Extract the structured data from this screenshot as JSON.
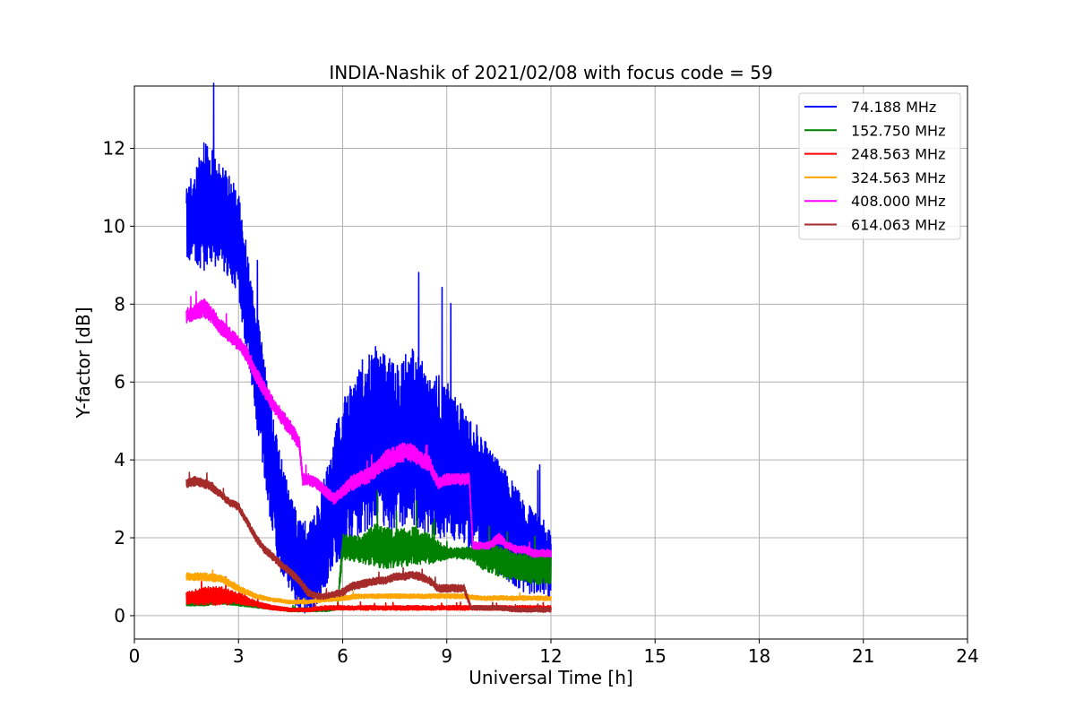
{
  "chart_data": {
    "type": "line",
    "title": "INDIA-Nashik of 2021/02/08 with focus code = 59",
    "xlabel": "Universal Time [h]",
    "ylabel": "Y-factor [dB]",
    "xlim": [
      0,
      24
    ],
    "ylim": [
      -0.6,
      13.6
    ],
    "xticks": [
      0,
      3,
      6,
      9,
      12,
      15,
      18,
      21,
      24
    ],
    "yticks": [
      0,
      2,
      4,
      6,
      8,
      10,
      12
    ],
    "grid": true,
    "legend_position": "top-right",
    "series": [
      {
        "name": " 74.188 MHz",
        "color": "#0000ff",
        "x": [
          1.5,
          1.75,
          2.0,
          2.25,
          2.5,
          2.75,
          3.0,
          3.25,
          3.5,
          3.75,
          4.0,
          4.25,
          4.5,
          4.75,
          5.0,
          5.25,
          5.5,
          5.75,
          6.0,
          6.25,
          6.5,
          6.75,
          7.0,
          7.25,
          7.5,
          7.75,
          8.0,
          8.25,
          8.5,
          8.75,
          9.0,
          9.25,
          9.5,
          9.75,
          10.0,
          10.25,
          10.5,
          10.75,
          11.0,
          11.25,
          11.5,
          11.75,
          12.0
        ],
        "y": [
          10.0,
          10.3,
          10.6,
          10.5,
          10.2,
          10.0,
          9.5,
          8.0,
          6.5,
          5.0,
          3.5,
          2.5,
          1.8,
          1.3,
          1.2,
          1.5,
          2.2,
          3.0,
          3.5,
          4.0,
          4.3,
          4.5,
          4.7,
          4.5,
          4.3,
          4.5,
          4.6,
          4.4,
          4.2,
          4.0,
          4.0,
          3.8,
          3.5,
          3.2,
          3.0,
          2.8,
          2.5,
          2.3,
          2.0,
          1.8,
          1.6,
          1.5,
          1.4
        ],
        "spread": [
          1.0,
          1.2,
          1.8,
          1.5,
          1.4,
          1.3,
          1.4,
          1.4,
          1.5,
          1.6,
          1.6,
          1.5,
          1.3,
          1.2,
          1.2,
          1.3,
          1.5,
          1.8,
          2.0,
          2.1,
          2.2,
          2.3,
          2.4,
          2.3,
          2.2,
          2.2,
          2.3,
          2.2,
          2.1,
          2.0,
          2.0,
          1.9,
          1.8,
          1.7,
          1.6,
          1.6,
          1.5,
          1.4,
          1.3,
          1.2,
          1.1,
          1.0,
          1.0
        ]
      },
      {
        "name": "152.750 MHz",
        "color": "#008000",
        "x": [
          1.5,
          2.0,
          2.5,
          3.0,
          3.5,
          4.0,
          4.5,
          5.0,
          5.5,
          5.85,
          6.0,
          6.5,
          7.0,
          7.5,
          8.0,
          8.5,
          9.0,
          9.5,
          9.65,
          10.0,
          10.5,
          11.0,
          11.5,
          12.0
        ],
        "y": [
          0.3,
          0.3,
          0.35,
          0.3,
          0.25,
          0.2,
          0.15,
          0.15,
          0.15,
          0.2,
          1.8,
          1.7,
          1.8,
          1.7,
          1.8,
          1.7,
          1.6,
          1.6,
          1.6,
          1.5,
          1.4,
          1.3,
          1.2,
          1.2
        ],
        "spread": [
          0.05,
          0.05,
          0.05,
          0.05,
          0.05,
          0.05,
          0.05,
          0.05,
          0.05,
          0.05,
          0.35,
          0.35,
          0.6,
          0.5,
          0.5,
          0.4,
          0.15,
          0.15,
          0.15,
          0.3,
          0.4,
          0.4,
          0.4,
          0.4
        ]
      },
      {
        "name": "248.563 MHz",
        "color": "#ff0000",
        "x": [
          1.5,
          2.0,
          2.5,
          3.0,
          3.5,
          4.0,
          4.5,
          5.0,
          5.5,
          6.0,
          6.5,
          7.0,
          7.5,
          8.0,
          8.5,
          9.0,
          9.5,
          10.0,
          10.5,
          11.0,
          11.5,
          12.0
        ],
        "y": [
          0.45,
          0.5,
          0.5,
          0.45,
          0.3,
          0.2,
          0.15,
          0.15,
          0.2,
          0.2,
          0.2,
          0.2,
          0.2,
          0.2,
          0.2,
          0.2,
          0.2,
          0.2,
          0.2,
          0.2,
          0.2,
          0.2
        ],
        "spread": [
          0.15,
          0.25,
          0.25,
          0.15,
          0.08,
          0.06,
          0.05,
          0.05,
          0.06,
          0.06,
          0.06,
          0.06,
          0.06,
          0.06,
          0.06,
          0.06,
          0.06,
          0.06,
          0.06,
          0.06,
          0.06,
          0.06
        ]
      },
      {
        "name": "324.563 MHz",
        "color": "#ffa500",
        "x": [
          1.5,
          2.0,
          2.5,
          3.0,
          3.5,
          4.0,
          4.5,
          5.0,
          5.5,
          6.0,
          6.5,
          7.0,
          7.5,
          8.0,
          8.5,
          9.0,
          9.5,
          10.0,
          10.5,
          11.0,
          11.5,
          12.0
        ],
        "y": [
          1.0,
          1.0,
          0.95,
          0.7,
          0.5,
          0.4,
          0.35,
          0.35,
          0.4,
          0.45,
          0.5,
          0.5,
          0.5,
          0.5,
          0.5,
          0.5,
          0.5,
          0.45,
          0.45,
          0.45,
          0.45,
          0.45
        ],
        "spread": [
          0.1,
          0.1,
          0.1,
          0.08,
          0.06,
          0.05,
          0.05,
          0.05,
          0.05,
          0.06,
          0.06,
          0.06,
          0.06,
          0.06,
          0.06,
          0.06,
          0.06,
          0.06,
          0.06,
          0.06,
          0.06,
          0.06
        ]
      },
      {
        "name": "408.000 MHz",
        "color": "#ff00ff",
        "x": [
          1.5,
          1.75,
          2.0,
          2.25,
          2.5,
          2.75,
          3.0,
          3.25,
          3.5,
          3.75,
          4.0,
          4.25,
          4.5,
          4.75,
          4.85,
          5.0,
          5.25,
          5.5,
          5.75,
          6.0,
          6.25,
          6.5,
          6.75,
          7.0,
          7.25,
          7.5,
          7.75,
          8.0,
          8.25,
          8.5,
          8.75,
          9.0,
          9.25,
          9.5,
          9.65,
          9.75,
          10.0,
          10.25,
          10.5,
          10.75,
          11.0,
          11.25,
          11.5,
          11.75,
          12.0
        ],
        "y": [
          7.7,
          7.8,
          7.9,
          7.7,
          7.4,
          7.2,
          7.0,
          6.7,
          6.2,
          5.8,
          5.4,
          5.1,
          4.8,
          4.4,
          3.5,
          3.5,
          3.4,
          3.2,
          3.0,
          3.2,
          3.4,
          3.5,
          3.6,
          3.8,
          4.0,
          4.1,
          4.2,
          4.2,
          4.0,
          3.9,
          3.4,
          3.5,
          3.5,
          3.5,
          3.5,
          1.8,
          1.8,
          1.8,
          2.0,
          1.8,
          1.7,
          1.7,
          1.6,
          1.6,
          1.6
        ],
        "spread": [
          0.2,
          0.2,
          0.25,
          0.2,
          0.2,
          0.2,
          0.2,
          0.2,
          0.2,
          0.2,
          0.2,
          0.2,
          0.2,
          0.2,
          0.15,
          0.15,
          0.15,
          0.15,
          0.15,
          0.15,
          0.2,
          0.2,
          0.2,
          0.2,
          0.25,
          0.25,
          0.25,
          0.25,
          0.2,
          0.2,
          0.15,
          0.15,
          0.15,
          0.15,
          0.15,
          0.1,
          0.1,
          0.1,
          0.15,
          0.1,
          0.1,
          0.1,
          0.1,
          0.1,
          0.1
        ]
      },
      {
        "name": "614.063 MHz",
        "color": "#a52a2a",
        "x": [
          1.5,
          1.75,
          2.0,
          2.25,
          2.5,
          2.75,
          3.0,
          3.25,
          3.5,
          3.75,
          4.0,
          4.25,
          4.5,
          4.75,
          5.0,
          5.25,
          5.5,
          5.75,
          6.0,
          6.25,
          6.5,
          6.75,
          7.0,
          7.25,
          7.5,
          7.75,
          8.0,
          8.25,
          8.5,
          8.75,
          9.0,
          9.25,
          9.5,
          9.7,
          10.0,
          10.5,
          11.0,
          11.5,
          12.0
        ],
        "y": [
          3.4,
          3.45,
          3.4,
          3.3,
          3.1,
          2.9,
          2.8,
          2.4,
          2.0,
          1.7,
          1.5,
          1.3,
          1.1,
          0.9,
          0.6,
          0.5,
          0.5,
          0.55,
          0.6,
          0.75,
          0.8,
          0.85,
          0.9,
          0.9,
          1.0,
          1.0,
          1.05,
          1.0,
          0.9,
          0.7,
          0.7,
          0.7,
          0.7,
          0.2,
          0.2,
          0.2,
          0.15,
          0.15,
          0.15
        ],
        "spread": [
          0.12,
          0.12,
          0.12,
          0.12,
          0.1,
          0.1,
          0.1,
          0.1,
          0.1,
          0.1,
          0.1,
          0.1,
          0.1,
          0.1,
          0.1,
          0.08,
          0.08,
          0.08,
          0.1,
          0.1,
          0.1,
          0.1,
          0.1,
          0.1,
          0.1,
          0.1,
          0.1,
          0.1,
          0.1,
          0.1,
          0.1,
          0.1,
          0.1,
          0.06,
          0.06,
          0.06,
          0.06,
          0.06,
          0.06
        ]
      }
    ]
  }
}
